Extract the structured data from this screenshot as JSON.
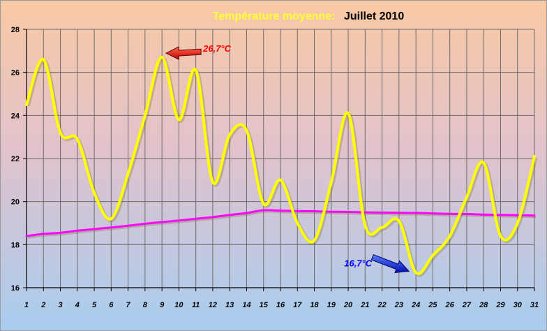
{
  "chart_data": {
    "type": "line",
    "title_part1": "Température moyenne:",
    "title_part2": "Juillet 2010",
    "title_colors": [
      "#ffff33",
      "#000000"
    ],
    "xlabel": "",
    "ylabel": "",
    "ylim": [
      16,
      28
    ],
    "y_ticks": [
      "16",
      "18",
      "20",
      "22",
      "24",
      "26",
      "28"
    ],
    "x": [
      1,
      2,
      3,
      4,
      5,
      6,
      7,
      8,
      9,
      10,
      11,
      12,
      13,
      14,
      15,
      16,
      17,
      18,
      19,
      20,
      21,
      22,
      23,
      24,
      25,
      26,
      27,
      28,
      29,
      30,
      31
    ],
    "grid": true,
    "series": [
      {
        "color": "#ffff00",
        "values": [
          24.5,
          26.6,
          23.2,
          22.9,
          20.4,
          19.2,
          21.3,
          24.0,
          26.7,
          23.8,
          26.1,
          20.9,
          23.1,
          23.3,
          19.9,
          21.0,
          19.0,
          18.2,
          20.9,
          24.1,
          18.9,
          18.8,
          19.1,
          16.7,
          17.5,
          18.4,
          20.2,
          21.8,
          18.4,
          19.0,
          22.1
        ]
      },
      {
        "color": "#ff00ff",
        "values": [
          18.4,
          18.5,
          18.55,
          18.65,
          18.72,
          18.8,
          18.88,
          18.97,
          19.05,
          19.12,
          19.2,
          19.28,
          19.38,
          19.47,
          19.6,
          19.58,
          19.56,
          19.55,
          19.53,
          19.52,
          19.5,
          19.49,
          19.48,
          19.47,
          19.45,
          19.43,
          19.42,
          19.4,
          19.38,
          19.37,
          19.35
        ]
      }
    ],
    "annotations": [
      {
        "text": "26,7°C",
        "x": 9,
        "y": 26.7,
        "color": "#ff0000",
        "arrow": "red-arrow"
      },
      {
        "text": "16,7°C",
        "x": 24,
        "y": 16.7,
        "color": "#0000ff",
        "arrow": "blue-arrow"
      }
    ]
  }
}
